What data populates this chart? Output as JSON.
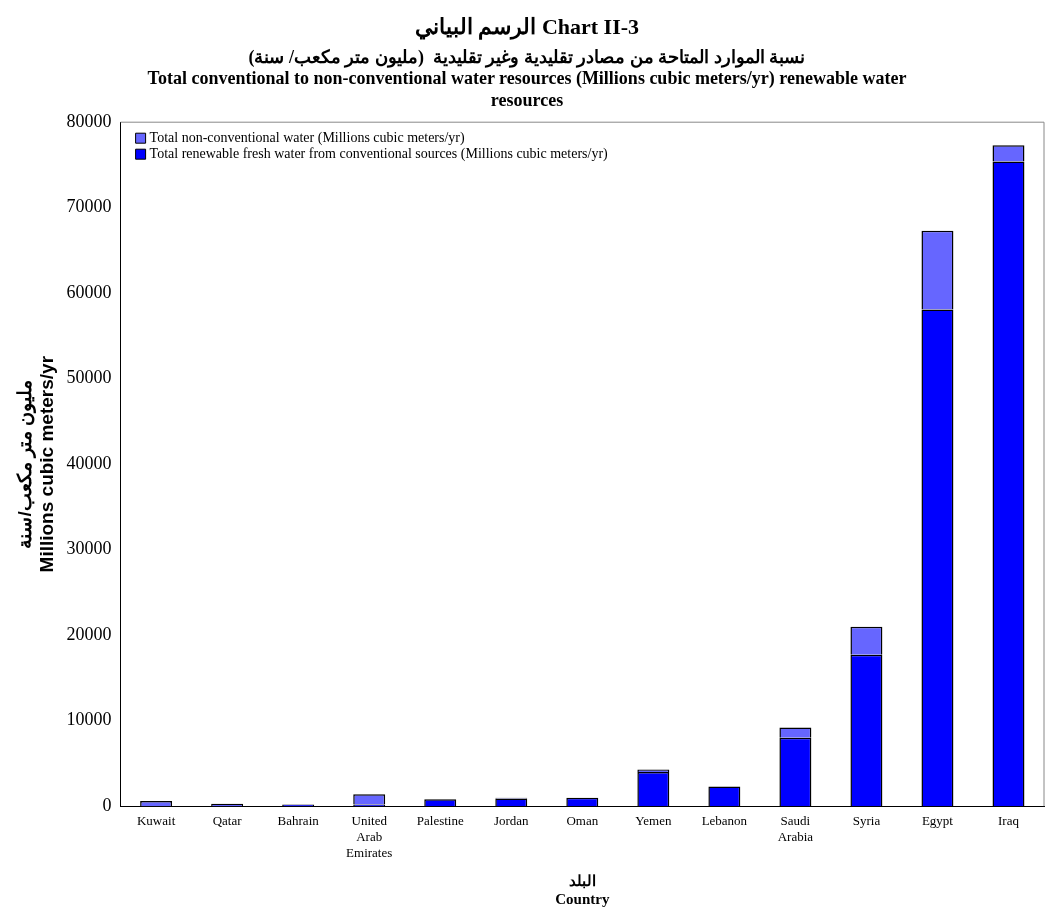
{
  "chart_data": {
    "type": "bar",
    "title": "الرسم البياني Chart II-3",
    "subtitle": "نسبة الموارد المتاحة من مصادر تقليدية وغير تقليدية  (مليون متر مكعب/ سنة)\nTotal conventional to non-conventional water resources (Millions cubic meters/yr) renewable water resources",
    "xlabel": "البلد\nCountry",
    "ylabel": "مليون متر مكعب/سنة\nMillions cubic meters/yr",
    "categories": [
      "Kuwait",
      "Qatar",
      "Bahrain",
      "United Arab Emirates",
      "Palestine",
      "Jordan",
      "Oman",
      "Yemen",
      "Lebanon",
      "Saudi Arabia",
      "Syria",
      "Egypt",
      "Iraq"
    ],
    "stacked": true,
    "series": [
      {
        "name": "Total renewable fresh water from conventional sources (Millions cubic meters/yr)",
        "color": "#0000ff",
        "values": [
          null,
          null,
          200,
          200,
          800,
          900,
          1000,
          4000,
          2300,
          8000,
          17700,
          58100,
          75400
        ]
      },
      {
        "name": "Total non-conventional water (Millions cubic meters/yr)",
        "color": "#6666ff",
        "values": [
          600,
          300,
          null,
          1200,
          0,
          100,
          null,
          300,
          null,
          1200,
          3300,
          9200,
          1900
        ]
      }
    ],
    "ylim": [
      0,
      80000
    ],
    "yticks": [
      0,
      10000,
      20000,
      30000,
      40000,
      50000,
      60000,
      70000,
      80000
    ],
    "grid": false,
    "legend": "top left"
  }
}
